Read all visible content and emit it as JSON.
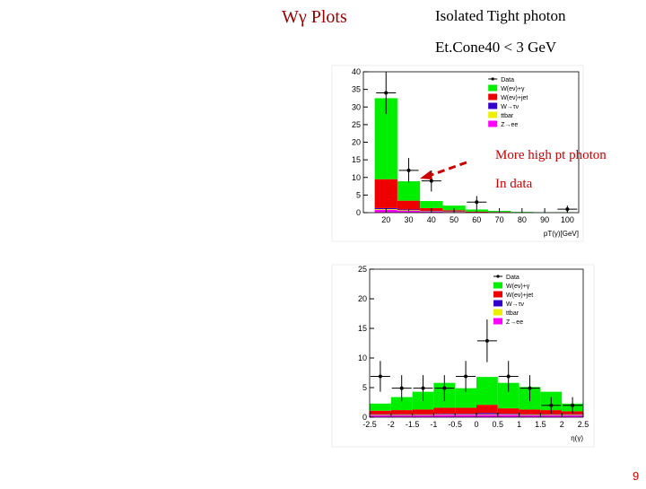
{
  "slide": {
    "title": "Wγ Plots",
    "subtitle": "Isolated Tight photon",
    "cut": "Et.Cone40 < 3 GeV",
    "annotations": [
      "More high pt photon",
      "In data"
    ],
    "page_number": "9"
  },
  "chart_data": [
    {
      "type": "histogram",
      "x_label": "pT(γ)[GeV]",
      "bins": [
        15,
        25,
        35,
        45,
        55,
        65,
        75,
        85,
        95,
        105
      ],
      "xlim": [
        10,
        105
      ],
      "xticks": [
        20,
        30,
        40,
        50,
        60,
        70,
        80,
        90,
        100
      ],
      "ylim": [
        0,
        40
      ],
      "yticks": [
        0,
        5,
        10,
        15,
        20,
        25,
        30,
        35,
        40
      ],
      "stacked": true,
      "legend": "upper right",
      "series": [
        {
          "name": "W(eν)+γ",
          "color": "#00ee00",
          "values": [
            23,
            5.5,
            2,
            1.3,
            0.6,
            0.3,
            0.2,
            0.1,
            0.1
          ]
        },
        {
          "name": "W(eν)+jet",
          "color": "#ee0000",
          "values": [
            8.2,
            2.5,
            0.8,
            0.3,
            0.2,
            0.1,
            0,
            0,
            0
          ]
        },
        {
          "name": "W→τν",
          "color": "#3300cc",
          "values": [
            0.3,
            0.2,
            0.1,
            0.1,
            0,
            0,
            0,
            0,
            0
          ]
        },
        {
          "name": "ttbar",
          "color": "#eeee00",
          "values": [
            0.2,
            0.2,
            0.1,
            0.1,
            0,
            0,
            0,
            0,
            0
          ]
        },
        {
          "name": "Z→ee",
          "color": "#ff00ff",
          "values": [
            0.8,
            0.5,
            0.3,
            0.2,
            0.1,
            0.1,
            0,
            0,
            0
          ]
        }
      ],
      "data": {
        "name": "Data",
        "color": "#000000",
        "x": [
          20,
          30,
          40,
          60,
          100
        ],
        "values": [
          34,
          12,
          9,
          3,
          1
        ],
        "errors": [
          6,
          3.5,
          3,
          1.7,
          1
        ]
      }
    },
    {
      "type": "histogram",
      "x_label": "η(γ)",
      "bins": [
        -2.5,
        -2,
        -1.5,
        -1,
        -0.5,
        0,
        0.5,
        1,
        1.5,
        2,
        2.5
      ],
      "xlim": [
        -2.5,
        2.5
      ],
      "xticks": [
        -2.5,
        -2,
        -1.5,
        -1,
        -0.5,
        0,
        0.5,
        1,
        1.5,
        2,
        2.5
      ],
      "ylim": [
        0,
        25
      ],
      "yticks": [
        0,
        5,
        10,
        15,
        20,
        25
      ],
      "stacked": true,
      "legend": "upper right",
      "series": [
        {
          "name": "W(eν)+γ",
          "color": "#00ee00",
          "values": [
            1.2,
            2.2,
            3.0,
            4.2,
            3.3,
            4.7,
            4.3,
            3.8,
            3.1,
            1.3
          ]
        },
        {
          "name": "W(eν)+jet",
          "color": "#ee0000",
          "values": [
            0.6,
            0.7,
            0.8,
            1.0,
            1.0,
            1.4,
            0.9,
            0.8,
            0.7,
            0.5
          ]
        },
        {
          "name": "W→τν",
          "color": "#3300cc",
          "values": [
            0.1,
            0.1,
            0.1,
            0.1,
            0.1,
            0.2,
            0.1,
            0.1,
            0.1,
            0.1
          ]
        },
        {
          "name": "ttbar",
          "color": "#eeee00",
          "values": [
            0.1,
            0.1,
            0.1,
            0.1,
            0.1,
            0.1,
            0.1,
            0.1,
            0.1,
            0.1
          ]
        },
        {
          "name": "Z→ee",
          "color": "#ff00ff",
          "values": [
            0.3,
            0.3,
            0.3,
            0.4,
            0.4,
            0.4,
            0.4,
            0.3,
            0.3,
            0.3
          ]
        }
      ],
      "data": {
        "name": "Data",
        "color": "#000000",
        "x": [
          -2.25,
          -1.75,
          -1.25,
          -0.75,
          -0.25,
          0.25,
          0.75,
          1.25,
          1.75,
          2.25
        ],
        "values": [
          6.9,
          4.9,
          4.9,
          4.9,
          6.9,
          12.9,
          6.9,
          4.9,
          2,
          2
        ],
        "errors": [
          2.6,
          2.2,
          2.2,
          2.2,
          2.6,
          3.6,
          2.6,
          2.2,
          1.4,
          1.4
        ]
      }
    }
  ]
}
